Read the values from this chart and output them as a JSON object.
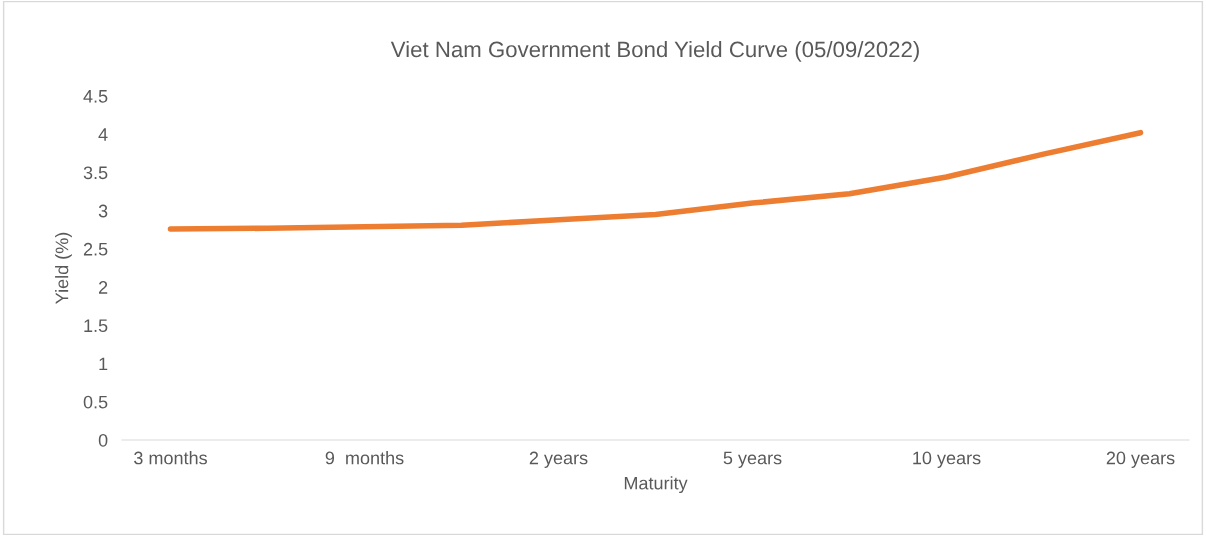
{
  "chart_data": {
    "type": "line",
    "title": "Viet Nam Government Bond Yield Curve (05/09/2022)",
    "xlabel": "Maturity",
    "ylabel": "Yield (%)",
    "categories": [
      "3 months",
      null,
      "9  months",
      null,
      "2 years",
      null,
      "5 years",
      null,
      "10 years",
      null,
      "20 years"
    ],
    "series": [
      {
        "color": "#ed7d31",
        "values": [
          2.76,
          2.77,
          2.79,
          2.81,
          2.88,
          2.95,
          3.1,
          3.22,
          3.44,
          3.74,
          4.02
        ]
      }
    ],
    "ylim": [
      0,
      4.5
    ],
    "yticks": [
      0,
      0.5,
      1,
      1.5,
      2,
      2.5,
      3,
      3.5,
      4,
      4.5
    ],
    "grid": false,
    "marker": "none",
    "line_style": "solid"
  }
}
